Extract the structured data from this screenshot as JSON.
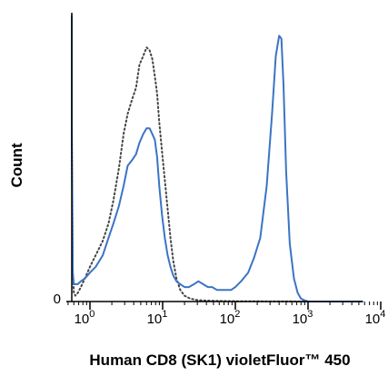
{
  "chart_data": {
    "type": "line",
    "title": "",
    "xlabel": "Human CD8 (SK1) violetFluor™ 450",
    "ylabel": "Count",
    "x_scale": "log",
    "xlim": [
      0.5,
      10000
    ],
    "ylim": [
      0,
      100
    ],
    "x_ticks": [
      {
        "value": 1,
        "base": "10",
        "exp": "0"
      },
      {
        "value": 10,
        "base": "10",
        "exp": "1"
      },
      {
        "value": 100,
        "base": "10",
        "exp": "2"
      },
      {
        "value": 1000,
        "base": "10",
        "exp": "3"
      },
      {
        "value": 10000,
        "base": "10",
        "exp": "4"
      }
    ],
    "y_ticks": [
      {
        "value": 0,
        "label": "0"
      }
    ],
    "grid": false,
    "legend": "none",
    "series": [
      {
        "style": "dotted",
        "color": "#444444",
        "x": [
          0.52,
          0.53,
          0.55,
          0.58,
          0.6,
          0.63,
          0.68,
          0.75,
          0.85,
          1.0,
          1.2,
          1.5,
          1.8,
          2.1,
          2.5,
          2.9,
          3.3,
          3.8,
          4.3,
          4.8,
          5.4,
          6.0,
          6.6,
          7.2,
          7.8,
          8.4,
          9.0,
          9.8,
          10.7,
          11.7,
          12.8,
          14.0,
          15.5,
          17.5,
          20,
          24,
          30,
          40,
          60,
          100,
          1000,
          10000
        ],
        "y": [
          97,
          92,
          60,
          10,
          3,
          2,
          3,
          5,
          8,
          12,
          16,
          21,
          27,
          35,
          46,
          58,
          65,
          70,
          74,
          82,
          85,
          88,
          87,
          84,
          78,
          72,
          62,
          52,
          42,
          32,
          22,
          14,
          8,
          4,
          2,
          1,
          0.5,
          0.3,
          0.2,
          0.1,
          0,
          0
        ]
      },
      {
        "style": "solid",
        "color": "#3b74c4",
        "x": [
          0.52,
          0.53,
          0.55,
          0.58,
          0.6,
          0.63,
          0.68,
          0.75,
          0.85,
          1.0,
          1.2,
          1.5,
          1.8,
          2.1,
          2.5,
          2.9,
          3.3,
          3.8,
          4.3,
          4.8,
          5.4,
          6.0,
          6.6,
          7.2,
          7.8,
          8.4,
          9.0,
          9.8,
          10.7,
          11.7,
          12.8,
          14.0,
          15.5,
          17.5,
          20,
          23,
          27,
          31,
          36,
          42,
          48,
          56,
          65,
          75,
          87,
          100,
          120,
          150,
          180,
          220,
          270,
          320,
          360,
          400,
          430,
          460,
          500,
          560,
          640,
          720,
          800,
          880,
          1000,
          2000,
          5000,
          10000
        ],
        "y": [
          99,
          96,
          60,
          10,
          6,
          6,
          6,
          7,
          8,
          10,
          12,
          16,
          22,
          27,
          33,
          40,
          47,
          49,
          51,
          55,
          58,
          60,
          60,
          58,
          56,
          50,
          40,
          30,
          22,
          16,
          12,
          9,
          7,
          6,
          5,
          5,
          6,
          7,
          6,
          5,
          5,
          4,
          4,
          4,
          4,
          5,
          7,
          10,
          15,
          22,
          40,
          65,
          85,
          92,
          91,
          75,
          45,
          20,
          8,
          3,
          1,
          0.5,
          0,
          0,
          0,
          0
        ]
      }
    ]
  }
}
